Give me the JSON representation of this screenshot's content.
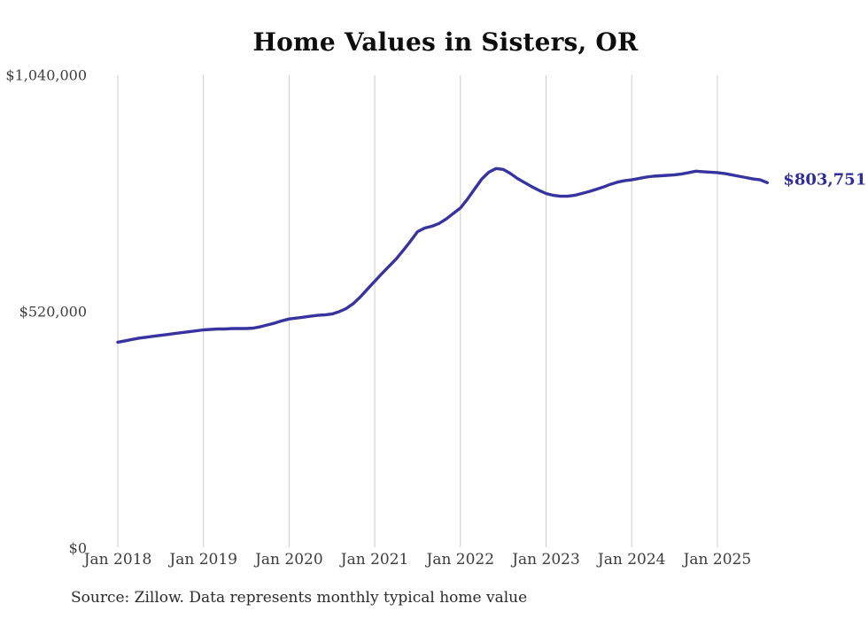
{
  "chart_data": {
    "type": "line",
    "title": "Home Values in Sisters, OR",
    "source": "Source: Zillow. Data represents monthly typical home value",
    "x_tick_labels": [
      "Jan 2018",
      "Jan 2019",
      "Jan 2020",
      "Jan 2021",
      "Jan 2022",
      "Jan 2023",
      "Jan 2024",
      "Jan 2025"
    ],
    "y_axis": {
      "ticks": [
        {
          "value": 0,
          "label": "$0"
        },
        {
          "value": 520000,
          "label": "$520,000"
        },
        {
          "value": 1040000,
          "label": "$1,040,000"
        }
      ],
      "range": [
        0,
        1040000
      ]
    },
    "grid": "vertical",
    "legend": "none",
    "series": [
      {
        "name": "Monthly typical home value",
        "start_month": "Jan 2018",
        "end_month": "Aug 2025",
        "frequency": "monthly",
        "values": [
          453000,
          456000,
          459000,
          462000,
          464000,
          466000,
          468000,
          470000,
          472000,
          474000,
          476000,
          478000,
          480000,
          481000,
          482000,
          482000,
          483000,
          483000,
          483000,
          484000,
          487000,
          491000,
          495000,
          500000,
          504000,
          506000,
          508000,
          510000,
          512000,
          513000,
          515000,
          520000,
          527000,
          538000,
          553000,
          570000,
          587000,
          604000,
          620000,
          636000,
          655000,
          675000,
          696000,
          704000,
          708000,
          714000,
          724000,
          736000,
          748000,
          768000,
          790000,
          812000,
          827000,
          835000,
          833000,
          824000,
          813000,
          804000,
          795000,
          787000,
          780000,
          776000,
          774000,
          774000,
          776000,
          780000,
          784000,
          789000,
          794000,
          800000,
          805000,
          808000,
          810000,
          813000,
          816000,
          818000,
          819000,
          820000,
          821000,
          823000,
          826000,
          829000,
          828000,
          827000,
          826000,
          824000,
          821000,
          818000,
          815000,
          812000,
          810000,
          803751
        ],
        "final_value": 803751,
        "final_value_label": "$803,751"
      }
    ],
    "annotations": [
      {
        "text": "$803,751",
        "position": "line-end"
      }
    ],
    "colors": {
      "line": "#38339f",
      "end_label": "#2e2b9e",
      "grid": "#cccccc",
      "tick_text": "#3d3d3d",
      "title": "#0d0d0d",
      "source": "#2b2b2b"
    }
  }
}
